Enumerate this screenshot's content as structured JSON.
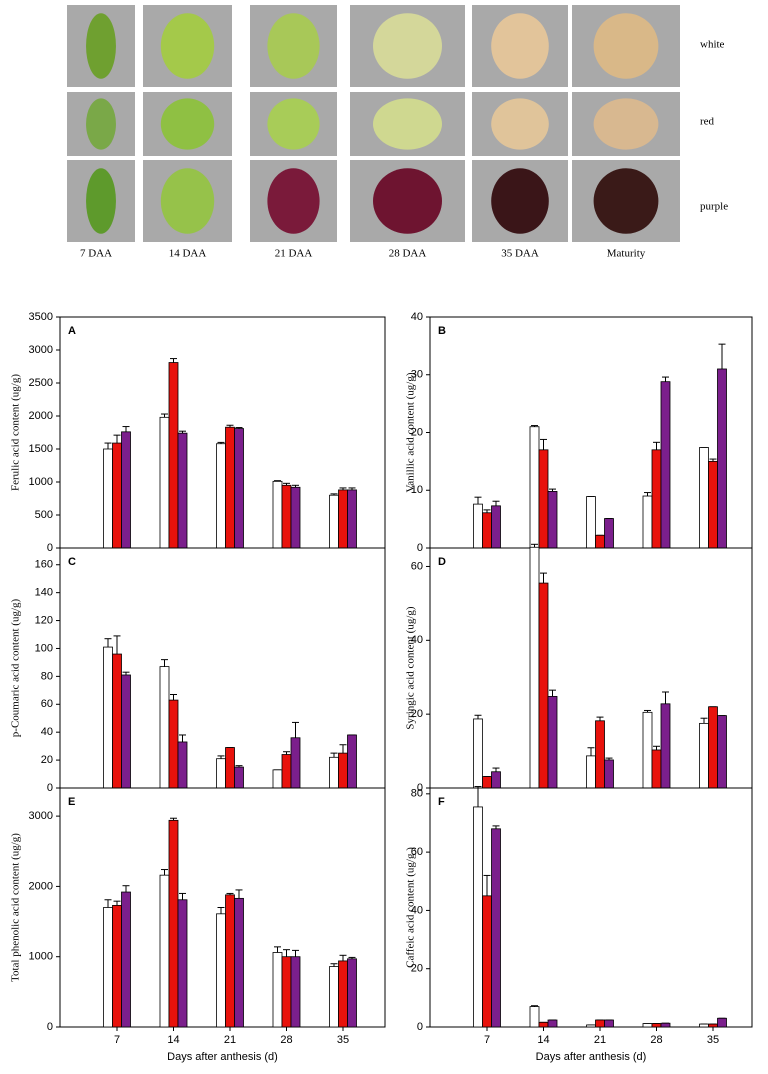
{
  "photo_panel": {
    "columns": [
      "7 DAA",
      "14 DAA",
      "21 DAA",
      "28 DAA",
      "35 DAA",
      "Maturity"
    ],
    "rows": [
      "white",
      "red",
      "purple"
    ]
  },
  "chart_data": [
    {
      "type": "bar",
      "panel": "A",
      "y_label": "Ferulic acid content (ug/g)",
      "ylim": [
        0,
        3500
      ],
      "yticks": [
        0,
        500,
        1000,
        1500,
        2000,
        2500,
        3000,
        3500
      ],
      "series": [
        {
          "color": "#ffffff",
          "values": [
            1500,
            1980,
            1580,
            1010,
            800
          ],
          "errors": [
            90,
            50,
            20,
            10,
            20
          ]
        },
        {
          "color": "#e8120c",
          "values": [
            1590,
            2810,
            1830,
            950,
            880
          ],
          "errors": [
            120,
            60,
            30,
            30,
            30
          ]
        },
        {
          "color": "#7b1f8c",
          "values": [
            1760,
            1740,
            1810,
            920,
            880
          ],
          "errors": [
            80,
            30,
            15,
            30,
            30
          ]
        }
      ]
    },
    {
      "type": "bar",
      "panel": "B",
      "y_label": "Vanillic acid content (ug/g)",
      "ylim": [
        0,
        40
      ],
      "yticks": [
        0,
        10,
        20,
        30,
        40
      ],
      "series": [
        {
          "color": "#ffffff",
          "values": [
            7.6,
            21,
            8.9,
            9.0,
            17.4
          ],
          "errors": [
            1.2,
            0.2,
            0,
            0.6,
            0
          ]
        },
        {
          "color": "#e8120c",
          "values": [
            6.1,
            17,
            2.2,
            17,
            15
          ],
          "errors": [
            0.5,
            1.8,
            0,
            1.3,
            0.4
          ]
        },
        {
          "color": "#7b1f8c",
          "values": [
            7.3,
            9.8,
            5.1,
            28.8,
            31
          ],
          "errors": [
            0.8,
            0.4,
            0,
            0.8,
            4.3
          ]
        }
      ]
    },
    {
      "type": "bar",
      "panel": "C",
      "y_label": "p-Coumaric acid content (ug/g)",
      "ylim": [
        0,
        172
      ],
      "yticks": [
        0,
        20,
        40,
        60,
        80,
        100,
        120,
        140,
        160
      ],
      "series": [
        {
          "color": "#ffffff",
          "values": [
            101,
            87,
            21,
            13,
            22
          ],
          "errors": [
            6,
            5,
            2,
            0,
            3
          ]
        },
        {
          "color": "#e8120c",
          "values": [
            96,
            63,
            29,
            24,
            25
          ],
          "errors": [
            13,
            4,
            0,
            2,
            6
          ]
        },
        {
          "color": "#7b1f8c",
          "values": [
            81,
            33,
            15,
            36,
            38
          ],
          "errors": [
            2,
            5,
            1,
            11,
            0
          ]
        }
      ]
    },
    {
      "type": "bar",
      "panel": "D",
      "y_label": "Syringic acid content (ug/g)",
      "ylim": [
        0,
        65
      ],
      "yticks": [
        0,
        20,
        40,
        60
      ],
      "series": [
        {
          "color": "#ffffff",
          "values": [
            18.7,
            65.2,
            8.7,
            20.5,
            17.5
          ],
          "errors": [
            1,
            0.8,
            2.2,
            0.5,
            1.4
          ]
        },
        {
          "color": "#e8120c",
          "values": [
            3.1,
            55.5,
            18.2,
            10.3,
            22
          ],
          "errors": [
            0,
            2.7,
            1,
            1,
            0
          ]
        },
        {
          "color": "#7b1f8c",
          "values": [
            4.4,
            24.8,
            7.6,
            22.8,
            19.6
          ],
          "errors": [
            1,
            1.7,
            0.5,
            3.2,
            0
          ]
        }
      ]
    },
    {
      "type": "bar",
      "panel": "E",
      "y_label": "Total phenolic acid content (ug/g)",
      "x_label": "Days after anthesis (d)",
      "categories": [
        "7",
        "14",
        "21",
        "28",
        "35"
      ],
      "ylim": [
        0,
        3400
      ],
      "yticks": [
        0,
        1000,
        2000,
        3000
      ],
      "series": [
        {
          "color": "#ffffff",
          "values": [
            1700,
            2160,
            1610,
            1060,
            860
          ],
          "errors": [
            110,
            80,
            90,
            80,
            40
          ]
        },
        {
          "color": "#e8120c",
          "values": [
            1730,
            2940,
            1880,
            1000,
            940
          ],
          "errors": [
            60,
            30,
            20,
            100,
            80
          ]
        },
        {
          "color": "#7b1f8c",
          "values": [
            1920,
            1810,
            1830,
            1000,
            970
          ],
          "errors": [
            90,
            90,
            120,
            90,
            20
          ]
        }
      ]
    },
    {
      "type": "bar",
      "panel": "F",
      "y_label": "Caffeic acid content (ug/g )",
      "x_label": "Days after anthesis (d)",
      "categories": [
        "7",
        "14",
        "21",
        "28",
        "35"
      ],
      "ylim": [
        0,
        82
      ],
      "yticks": [
        0,
        20,
        40,
        60,
        80
      ],
      "series": [
        {
          "color": "#ffffff",
          "values": [
            75.5,
            7,
            0.7,
            1.2,
            1
          ],
          "errors": [
            7,
            0.3,
            0,
            0,
            0
          ]
        },
        {
          "color": "#e8120c",
          "values": [
            45,
            1.6,
            2.4,
            1.2,
            1
          ],
          "errors": [
            7,
            0,
            0,
            0,
            0
          ]
        },
        {
          "color": "#7b1f8c",
          "values": [
            68,
            2.4,
            2.4,
            1.3,
            3
          ],
          "errors": [
            1,
            0,
            0,
            0,
            0
          ]
        }
      ]
    }
  ]
}
